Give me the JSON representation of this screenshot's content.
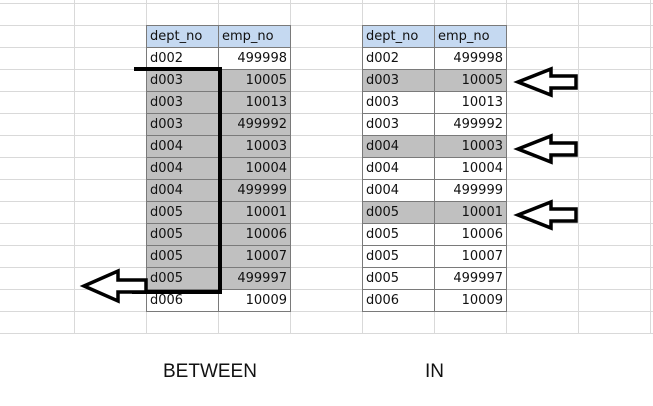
{
  "tables": {
    "between": {
      "headers": [
        "dept_no",
        "emp_no"
      ],
      "rows": [
        {
          "dept_no": "d002",
          "emp_no": "499998",
          "highlighted": false
        },
        {
          "dept_no": "d003",
          "emp_no": "10005",
          "highlighted": true
        },
        {
          "dept_no": "d003",
          "emp_no": "10013",
          "highlighted": true
        },
        {
          "dept_no": "d003",
          "emp_no": "499992",
          "highlighted": true
        },
        {
          "dept_no": "d004",
          "emp_no": "10003",
          "highlighted": true
        },
        {
          "dept_no": "d004",
          "emp_no": "10004",
          "highlighted": true
        },
        {
          "dept_no": "d004",
          "emp_no": "499999",
          "highlighted": true
        },
        {
          "dept_no": "d005",
          "emp_no": "10001",
          "highlighted": true
        },
        {
          "dept_no": "d005",
          "emp_no": "10006",
          "highlighted": true
        },
        {
          "dept_no": "d005",
          "emp_no": "10007",
          "highlighted": true
        },
        {
          "dept_no": "d005",
          "emp_no": "499997",
          "highlighted": true
        },
        {
          "dept_no": "d006",
          "emp_no": "10009",
          "highlighted": false
        }
      ]
    },
    "in": {
      "headers": [
        "dept_no",
        "emp_no"
      ],
      "rows": [
        {
          "dept_no": "d002",
          "emp_no": "499998",
          "highlighted": false
        },
        {
          "dept_no": "d003",
          "emp_no": "10005",
          "highlighted": true
        },
        {
          "dept_no": "d003",
          "emp_no": "10013",
          "highlighted": false
        },
        {
          "dept_no": "d003",
          "emp_no": "499992",
          "highlighted": false
        },
        {
          "dept_no": "d004",
          "emp_no": "10003",
          "highlighted": true
        },
        {
          "dept_no": "d004",
          "emp_no": "10004",
          "highlighted": false
        },
        {
          "dept_no": "d004",
          "emp_no": "499999",
          "highlighted": false
        },
        {
          "dept_no": "d005",
          "emp_no": "10001",
          "highlighted": true
        },
        {
          "dept_no": "d005",
          "emp_no": "10006",
          "highlighted": false
        },
        {
          "dept_no": "d005",
          "emp_no": "10007",
          "highlighted": false
        },
        {
          "dept_no": "d005",
          "emp_no": "499997",
          "highlighted": false
        },
        {
          "dept_no": "d006",
          "emp_no": "10009",
          "highlighted": false
        }
      ]
    }
  },
  "captions": {
    "between": "BETWEEN",
    "in": "IN"
  },
  "colors": {
    "header_bg": "#c5d9f1",
    "highlight_bg": "#c0c0c0",
    "gridline": "#d9d9d9",
    "annotation": "#000000"
  },
  "icons": {
    "bracket": "range-bracket",
    "arrow": "left-arrow-icon"
  }
}
